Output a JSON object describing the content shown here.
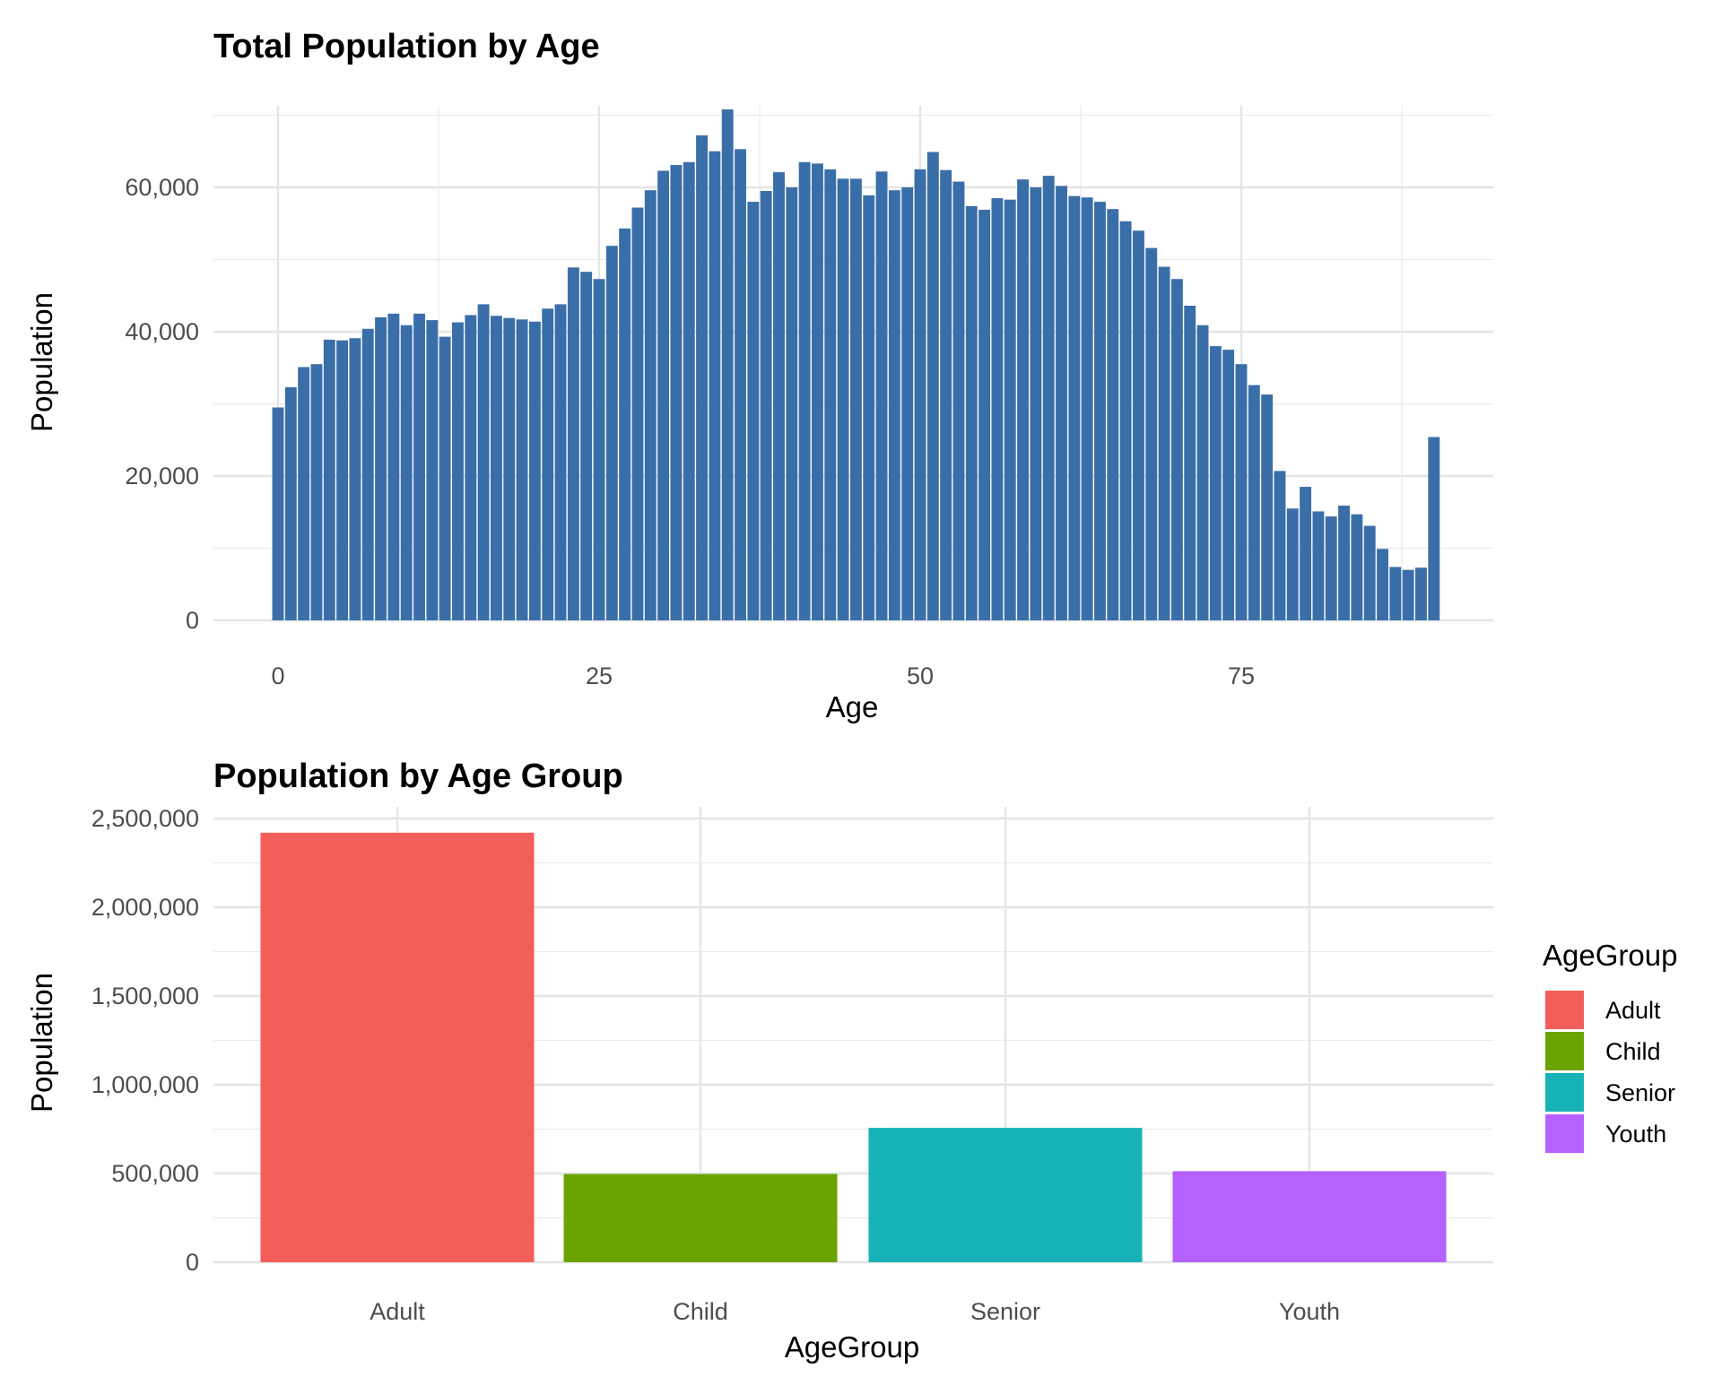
{
  "chart_data": [
    {
      "type": "bar",
      "title": "Total Population by Age",
      "xlabel": "Age",
      "ylabel": "Population",
      "x_ticks": [
        "0",
        "25",
        "50",
        "75"
      ],
      "y_ticks": [
        "0",
        "20,000",
        "40,000",
        "60,000"
      ],
      "xlim": [
        -5,
        95
      ],
      "ylim": [
        0,
        70000
      ],
      "grid": true,
      "color": "#3A6EA8",
      "x": [
        0,
        1,
        2,
        3,
        4,
        5,
        6,
        7,
        8,
        9,
        10,
        11,
        12,
        13,
        14,
        15,
        16,
        17,
        18,
        19,
        20,
        21,
        22,
        23,
        24,
        25,
        26,
        27,
        28,
        29,
        30,
        31,
        32,
        33,
        34,
        35,
        36,
        37,
        38,
        39,
        40,
        41,
        42,
        43,
        44,
        45,
        46,
        47,
        48,
        49,
        50,
        51,
        52,
        53,
        54,
        55,
        56,
        57,
        58,
        59,
        60,
        61,
        62,
        63,
        64,
        65,
        66,
        67,
        68,
        69,
        70,
        71,
        72,
        73,
        74,
        75,
        76,
        77,
        78,
        79,
        80,
        81,
        82,
        83,
        84,
        85,
        86,
        87,
        88,
        89,
        90
      ],
      "values": [
        29500,
        32300,
        35100,
        35500,
        38900,
        38800,
        39100,
        40400,
        42000,
        42500,
        40900,
        42500,
        41600,
        39300,
        41300,
        42300,
        43800,
        42200,
        41900,
        41700,
        41400,
        43200,
        43800,
        48900,
        48300,
        47300,
        51900,
        54300,
        57200,
        59600,
        62300,
        63100,
        63500,
        67200,
        65000,
        70800,
        65300,
        58000,
        59500,
        62100,
        60000,
        63500,
        63300,
        62500,
        61200,
        61200,
        58900,
        62200,
        59600,
        60000,
        62500,
        64900,
        62400,
        60800,
        57400,
        56900,
        58500,
        58300,
        61100,
        60000,
        61600,
        60200,
        58800,
        58600,
        58000,
        57000,
        55300,
        54000,
        51600,
        49000,
        47300,
        43600,
        40900,
        38000,
        37500,
        35500,
        32600,
        31300,
        20700,
        15500,
        18500,
        15100,
        14400,
        15900,
        14700,
        13100,
        9900,
        7400,
        7000,
        7300,
        25400
      ]
    },
    {
      "type": "bar",
      "title": "Population by Age Group",
      "xlabel": "AgeGroup",
      "ylabel": "Population",
      "categories": [
        "Adult",
        "Child",
        "Senior",
        "Youth"
      ],
      "values": [
        2420000,
        497000,
        757000,
        513000
      ],
      "colors": [
        "#F35E5A",
        "#6BA300",
        "#17B2B7",
        "#B660FF"
      ],
      "y_ticks": [
        "0",
        "500,000",
        "1,000,000",
        "1,500,000",
        "2,000,000",
        "2,500,000"
      ],
      "ylim": [
        0,
        2500000
      ],
      "grid": true,
      "legend": {
        "title": "AgeGroup",
        "placement": "right",
        "entries": [
          "Adult",
          "Child",
          "Senior",
          "Youth"
        ]
      }
    }
  ]
}
